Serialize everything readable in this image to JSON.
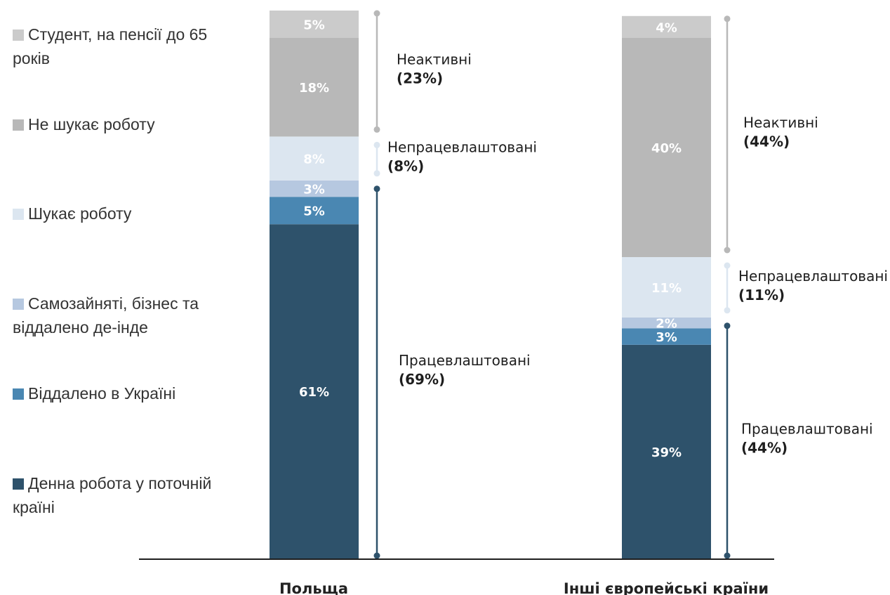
{
  "chart_data": {
    "type": "bar",
    "stacked": true,
    "categories": [
      "Польща",
      "Інші європейські країни"
    ],
    "series": [
      {
        "name": "Денна робота у поточній країні",
        "values": [
          61,
          39
        ],
        "labels": [
          "61%",
          "39%"
        ],
        "color": "#2e526b"
      },
      {
        "name": "Віддалено в Україні",
        "values": [
          5,
          3
        ],
        "labels": [
          "5%",
          "3%"
        ],
        "color": "#4a87b2"
      },
      {
        "name": "Самозайняті, бізнес та віддалено де-інде",
        "values": [
          3,
          2
        ],
        "labels": [
          "3%",
          "2%"
        ],
        "color": "#b6c8e0"
      },
      {
        "name": "Шукає роботу",
        "values": [
          8,
          11
        ],
        "labels": [
          "8%",
          "11%"
        ],
        "color": "#dce6f0"
      },
      {
        "name": "Не шукає роботу",
        "values": [
          18,
          40
        ],
        "labels": [
          "18%",
          "40%"
        ],
        "color": "#b8b8b8"
      },
      {
        "name": "Студент, на пенсії до 65 років",
        "values": [
          5,
          4
        ],
        "labels": [
          "5%",
          "4%"
        ],
        "color": "#cbcbcb"
      }
    ],
    "ylim": [
      0,
      100
    ],
    "legend_placement": "left",
    "brackets": [
      [
        {
          "name": "Працевлаштовані",
          "value_label": "(69%)",
          "color": "#2e526b"
        },
        {
          "name": "Непрацевлаштовані",
          "value_label": "(8%)",
          "color": "#dce6f0"
        },
        {
          "name": "Неактивні",
          "value_label": "(23%)",
          "color": "#b8b8b8"
        }
      ],
      [
        {
          "name": "Працевлаштовані",
          "value_label": "(44%)",
          "color": "#2e526b"
        },
        {
          "name": "Непрацевлаштовані",
          "value_label": "(11%)",
          "color": "#dce6f0"
        },
        {
          "name": "Неактивні",
          "value_label": "(44%)",
          "color": "#b8b8b8"
        }
      ]
    ]
  }
}
